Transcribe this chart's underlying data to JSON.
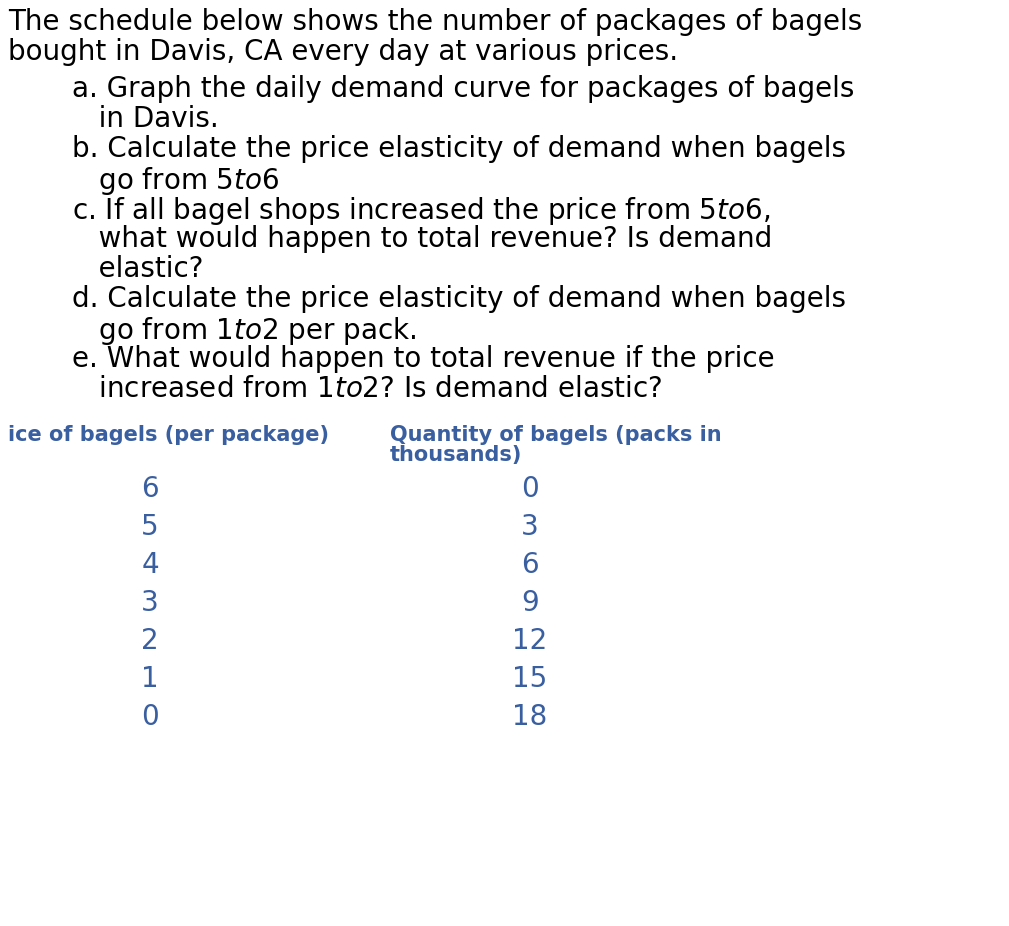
{
  "background_color": "#ffffff",
  "text_color": "#000000",
  "table_color": "#3a5fa0",
  "intro_text_line1": "The schedule below shows the number of packages of bagels",
  "intro_text_line2": "bought in Davis, CA every day at various prices.",
  "questions": [
    [
      "a. Graph the daily demand curve for packages of bagels",
      "   in Davis."
    ],
    [
      "b. Calculate the price elasticity of demand when bagels",
      "   go from $5 to $6"
    ],
    [
      "c. If all bagel shops increased the price from $5 to $6,",
      "   what would happen to total revenue? Is demand",
      "   elastic?"
    ],
    [
      "d. Calculate the price elasticity of demand when bagels",
      "   go from $1 to $2 per pack."
    ],
    [
      "e. What would happen to total revenue if the price",
      "   increased from $1 to $2? Is demand elastic?"
    ]
  ],
  "col1_header": "ice of bagels (per package)",
  "col2_header_line1": "Quantity of bagels (packs in",
  "col2_header_line2": "thousands)",
  "prices": [
    6,
    5,
    4,
    3,
    2,
    1,
    0
  ],
  "quantities": [
    0,
    3,
    6,
    9,
    12,
    15,
    18
  ],
  "intro_fontsize": 20,
  "question_fontsize": 20,
  "table_header_fontsize": 15,
  "table_data_fontsize": 20
}
